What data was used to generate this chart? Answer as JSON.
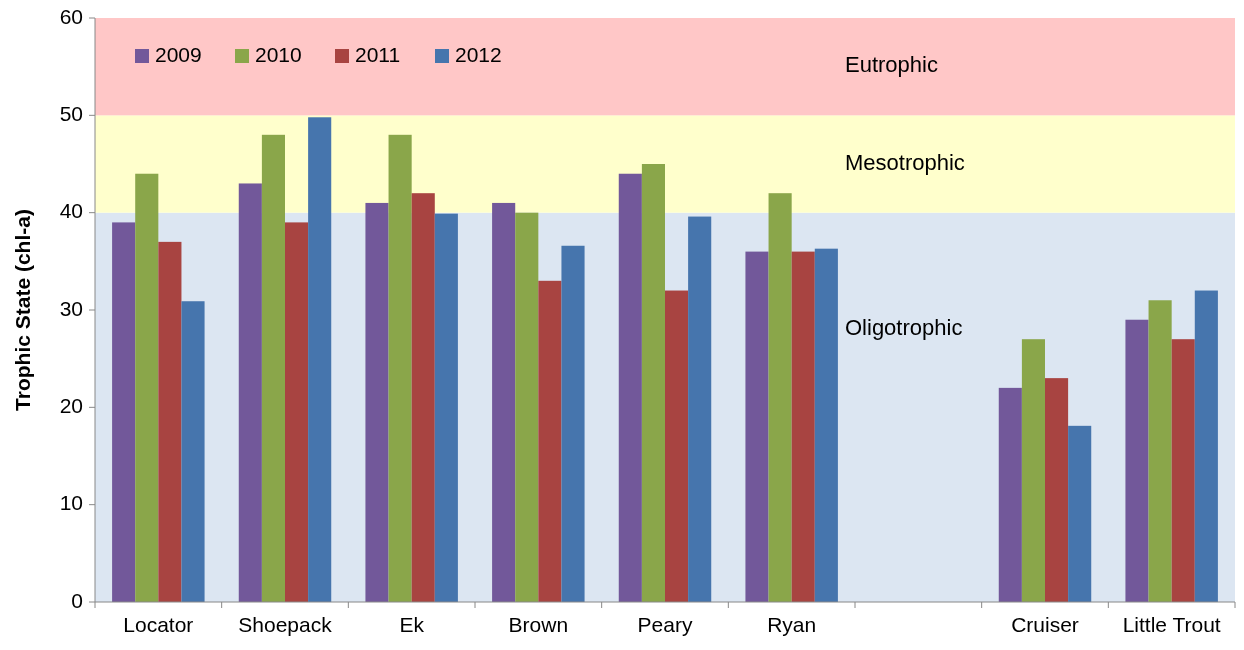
{
  "chart_data": {
    "type": "bar",
    "ylabel": "Trophic State (chl-a)",
    "categories": [
      "Locator",
      "Shoepack",
      "Ek",
      "Brown",
      "Peary",
      "Ryan",
      null,
      "Cruiser",
      "Little Trout"
    ],
    "series": [
      {
        "name": "2009",
        "color": "#72589a",
        "values": [
          39,
          43,
          41,
          41,
          44,
          36,
          null,
          22,
          29
        ]
      },
      {
        "name": "2010",
        "color": "#8aa64a",
        "values": [
          44,
          48,
          48,
          40,
          45,
          42,
          null,
          27,
          31
        ]
      },
      {
        "name": "2011",
        "color": "#a84441",
        "values": [
          37,
          39,
          42,
          33,
          32,
          36,
          null,
          23,
          27
        ]
      },
      {
        "name": "2012",
        "color": "#4675ad",
        "values": [
          30.9,
          49.8,
          39.9,
          36.6,
          39.6,
          36.3,
          null,
          18.1,
          32
        ]
      }
    ],
    "bands": [
      {
        "axis": "y",
        "from": 0,
        "to": 40,
        "label": "Oligotrophic",
        "color": "#dce6f2"
      },
      {
        "axis": "y",
        "from": 40,
        "to": 50,
        "label": "Mesotrophic",
        "color": "#ffffcc"
      },
      {
        "axis": "y",
        "from": 50,
        "to": 60,
        "label": "Eutrophic",
        "color": "#ffc7c7"
      }
    ],
    "ylim": [
      0,
      60
    ],
    "yticks": [
      0,
      10,
      20,
      30,
      40,
      50,
      60
    ],
    "grid": false,
    "legend": "top left"
  }
}
